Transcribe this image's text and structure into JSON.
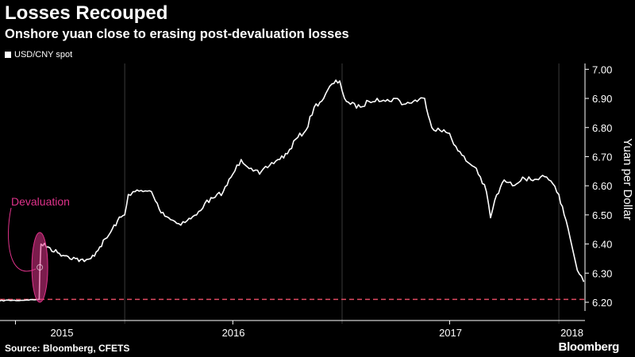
{
  "colors": {
    "background": "#000000",
    "line": "#ffffff",
    "annotation": "#e0338b",
    "reference_line": "#e04a62",
    "grid": "#3a3a3a"
  },
  "footer": {
    "source": "Source: Bloomberg, CFETS",
    "brand": "Bloomberg"
  },
  "chart_data": {
    "type": "line",
    "title": "Losses Recouped",
    "subtitle": "Onshore yuan close to erasing post-devaluation losses",
    "ylabel": "Yuan per Dollar",
    "ylim": [
      6.17,
      7.02
    ],
    "yticks": [
      6.2,
      6.3,
      6.4,
      6.5,
      6.6,
      6.7,
      6.8,
      6.9,
      7.0
    ],
    "ytick_labels": [
      "6.20",
      "6.30",
      "6.40",
      "6.50",
      "6.60",
      "6.70",
      "6.80",
      "6.90",
      "7.00"
    ],
    "xlim": [
      "2015-06-05",
      "2018-02-14"
    ],
    "x_tick_labels": [
      "2015",
      "2016",
      "2017",
      "2018"
    ],
    "grid": "vertical",
    "legend": {
      "position": "top-left",
      "entries": [
        "USD/CNY spot"
      ]
    },
    "reference_line": {
      "y": 6.21,
      "style": "dashed"
    },
    "annotations": [
      {
        "text": "Devaluation",
        "x": "2015-08-11",
        "y": 6.32
      }
    ],
    "series": [
      {
        "name": "USD/CNY spot",
        "x": [
          "2015-06-05",
          "2015-06-20",
          "2015-07-05",
          "2015-07-20",
          "2015-08-05",
          "2015-08-10",
          "2015-08-11",
          "2015-08-13",
          "2015-08-25",
          "2015-09-10",
          "2015-09-25",
          "2015-10-10",
          "2015-10-25",
          "2015-11-05",
          "2015-11-20",
          "2015-12-05",
          "2015-12-20",
          "2016-01-01",
          "2016-01-07",
          "2016-01-15",
          "2016-02-01",
          "2016-02-15",
          "2016-02-28",
          "2016-03-15",
          "2016-04-01",
          "2016-04-15",
          "2016-05-01",
          "2016-05-15",
          "2016-06-01",
          "2016-06-15",
          "2016-07-01",
          "2016-07-15",
          "2016-08-01",
          "2016-08-15",
          "2016-09-01",
          "2016-09-15",
          "2016-10-01",
          "2016-10-15",
          "2016-11-01",
          "2016-11-15",
          "2016-12-01",
          "2016-12-15",
          "2016-12-28",
          "2017-01-05",
          "2017-01-15",
          "2017-02-01",
          "2017-02-15",
          "2017-03-01",
          "2017-03-15",
          "2017-04-01",
          "2017-04-15",
          "2017-05-01",
          "2017-05-20",
          "2017-06-01",
          "2017-06-15",
          "2017-07-01",
          "2017-07-15",
          "2017-08-01",
          "2017-08-15",
          "2017-09-01",
          "2017-09-08",
          "2017-09-15",
          "2017-10-01",
          "2017-10-15",
          "2017-11-01",
          "2017-11-15",
          "2017-12-01",
          "2017-12-15",
          "2018-01-01",
          "2018-01-10",
          "2018-01-20",
          "2018-02-01",
          "2018-02-08",
          "2018-02-12"
        ],
        "values": [
          6.205,
          6.207,
          6.206,
          6.208,
          6.209,
          6.21,
          6.3,
          6.4,
          6.39,
          6.37,
          6.36,
          6.35,
          6.34,
          6.35,
          6.39,
          6.43,
          6.48,
          6.5,
          6.57,
          6.58,
          6.58,
          6.58,
          6.52,
          6.49,
          6.47,
          6.48,
          6.5,
          6.54,
          6.56,
          6.58,
          6.64,
          6.69,
          6.66,
          6.64,
          6.67,
          6.69,
          6.71,
          6.76,
          6.79,
          6.87,
          6.9,
          6.95,
          6.96,
          6.9,
          6.88,
          6.87,
          6.89,
          6.9,
          6.89,
          6.9,
          6.88,
          6.89,
          6.9,
          6.8,
          6.79,
          6.78,
          6.72,
          6.68,
          6.66,
          6.58,
          6.49,
          6.55,
          6.62,
          6.6,
          6.63,
          6.62,
          6.63,
          6.62,
          6.57,
          6.5,
          6.42,
          6.31,
          6.29,
          6.27
        ]
      }
    ]
  }
}
